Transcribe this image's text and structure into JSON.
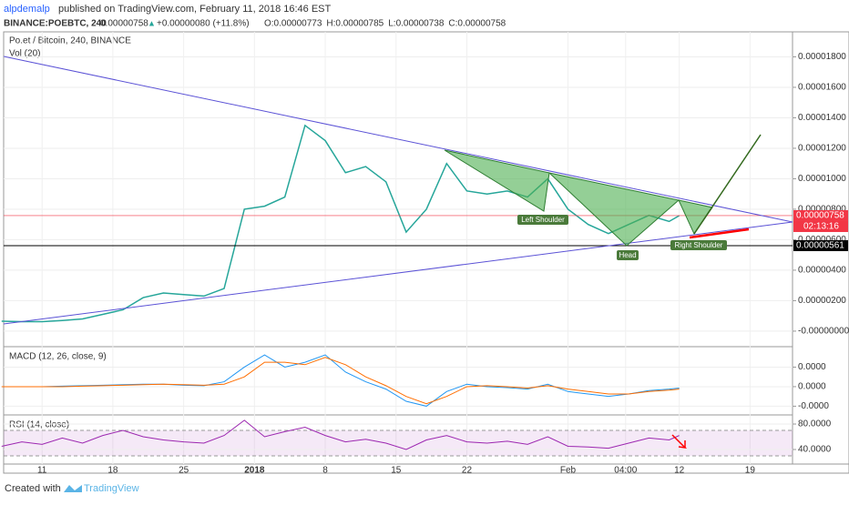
{
  "header": {
    "author": "alpdemalp",
    "published": "published on TradingView.com, February 11, 2018 16:46 EST",
    "symbol": "BINANCE:POEBTC, 240",
    "last": "0.00000758",
    "change": "+0.00000080 (+11.8%)",
    "ohlc": [
      "O:0.00000773",
      "H:0.00000785",
      "L:0.00000738",
      "C:0.00000758"
    ]
  },
  "chart_data": [
    {
      "type": "line",
      "title": "Po.et / Bitcoin, 240, BINANCE",
      "subtitle": "Vol (20)",
      "x": [
        -4,
        -2,
        0,
        2,
        4,
        6,
        8,
        10,
        12,
        14,
        16,
        18,
        20,
        22,
        24,
        26,
        28,
        30,
        32,
        34,
        36,
        38,
        40,
        42,
        44,
        46,
        48,
        50,
        52,
        54,
        56,
        58,
        60,
        62,
        63
      ],
      "series": [
        {
          "color": "#26a69a",
          "values": [
            6.5e-07,
            6.2e-07,
            6.2e-07,
            7e-07,
            8e-07,
            1.1e-06,
            1.4e-06,
            2.2e-06,
            2.5e-06,
            2.4e-06,
            2.3e-06,
            2.8e-06,
            8e-06,
            8.2e-06,
            8.8e-06,
            1.35e-05,
            1.25e-05,
            1.04e-05,
            1.08e-05,
            9.8e-06,
            6.5e-06,
            8e-06,
            1.1e-05,
            9.2e-06,
            9e-06,
            9.2e-06,
            8.8e-06,
            1e-05,
            8e-06,
            7e-06,
            6.4e-06,
            7e-06,
            7.6e-06,
            7.2e-06,
            7.58e-06
          ]
        }
      ],
      "xlim": [
        -3.8,
        74.2
      ],
      "xticks": [
        {
          "value": 0,
          "label": "11"
        },
        {
          "value": 7,
          "label": "18"
        },
        {
          "value": 14,
          "label": "25"
        },
        {
          "value": 21,
          "label": "2018"
        },
        {
          "value": 28,
          "label": "8"
        },
        {
          "value": 35,
          "label": "15"
        },
        {
          "value": 42,
          "label": "22"
        },
        {
          "value": 52,
          "label": "Feb"
        },
        {
          "value": 57.7,
          "label": "04:00"
        },
        {
          "value": 63,
          "label": "12"
        },
        {
          "value": 70,
          "label": "19"
        }
      ],
      "ylim": [
        -9.6e-07,
        1.964e-05
      ],
      "yticks": [
        {
          "value": 1.8e-05,
          "label": "0.00001800"
        },
        {
          "value": 1.6e-05,
          "label": "0.00001600"
        },
        {
          "value": 1.4e-05,
          "label": "0.00001400"
        },
        {
          "value": 1.2e-05,
          "label": "0.00001200"
        },
        {
          "value": 1e-05,
          "label": "0.00001000"
        },
        {
          "value": 8e-06,
          "label": "0.00000800"
        },
        {
          "value": 6e-06,
          "label": "0.00000600"
        },
        {
          "value": 4e-06,
          "label": "0.00000400"
        },
        {
          "value": 2e-06,
          "label": "0.00000200"
        },
        {
          "value": 0,
          "label": "-0.00000000"
        }
      ],
      "levels": [
        {
          "value": 7.58e-06,
          "label": "0.00000758",
          "color": "#f23645"
        },
        {
          "value": 5.61e-06,
          "label": "0.00000561",
          "color": "#000000"
        }
      ],
      "countdown": "02:13:16"
    },
    {
      "type": "line",
      "title": "MACD (12, 26, close, 9)",
      "x": [
        -4,
        -2,
        0,
        2,
        4,
        6,
        8,
        10,
        12,
        14,
        16,
        18,
        20,
        22,
        24,
        26,
        28,
        30,
        32,
        34,
        36,
        38,
        40,
        42,
        44,
        46,
        48,
        50,
        52,
        54,
        56,
        58,
        60,
        62,
        63
      ],
      "series": [
        {
          "color": "#2196f3",
          "values": [
            0,
            0,
            0,
            1e-08,
            2e-08,
            3e-08,
            4e-08,
            5e-08,
            5e-08,
            3e-08,
            2e-08,
            1e-07,
            4e-07,
            6.5e-07,
            4e-07,
            5e-07,
            6.5e-07,
            3e-07,
            1e-07,
            -5e-08,
            -3e-07,
            -4e-07,
            -1e-07,
            5e-08,
            0,
            -2e-08,
            -5e-08,
            5e-08,
            -1e-07,
            -1.5e-07,
            -2e-07,
            -1.5e-07,
            -8e-08,
            -5e-08,
            -3e-08
          ]
        },
        {
          "color": "#ff6d00",
          "values": [
            0,
            0,
            0,
            0,
            1e-08,
            2e-08,
            3e-08,
            4e-08,
            5e-08,
            4e-08,
            3e-08,
            5e-08,
            2e-07,
            5e-07,
            5e-07,
            4.5e-07,
            6e-07,
            4.5e-07,
            2e-07,
            2e-08,
            -2e-07,
            -3.5e-07,
            -2e-07,
            0,
            2e-08,
            0,
            -3e-08,
            2e-08,
            -5e-08,
            -1e-07,
            -1.5e-07,
            -1.5e-07,
            -1e-07,
            -7e-08,
            -5e-08
          ]
        }
      ],
      "xlim": [
        -3.8,
        74.2
      ],
      "ylim": [
        -5.6e-07,
        8e-07
      ],
      "yticks": [
        {
          "value": 4e-07,
          "label": "0.0000"
        },
        {
          "value": 0,
          "label": "0.0000"
        },
        {
          "value": -4e-07,
          "label": "-0.0000"
        }
      ]
    },
    {
      "type": "line",
      "title": "RSI (14, close)",
      "x": [
        -4,
        -2,
        0,
        2,
        4,
        6,
        8,
        10,
        12,
        14,
        16,
        18,
        20,
        22,
        24,
        26,
        28,
        30,
        32,
        34,
        36,
        38,
        40,
        42,
        44,
        46,
        48,
        50,
        52,
        54,
        56,
        58,
        60,
        62,
        63
      ],
      "series": [
        {
          "color": "#9c27b0",
          "values": [
            45,
            52,
            48,
            58,
            50,
            62,
            70,
            60,
            55,
            52,
            50,
            62,
            86,
            60,
            68,
            75,
            62,
            52,
            56,
            50,
            40,
            55,
            62,
            52,
            50,
            53,
            48,
            60,
            45,
            44,
            42,
            50,
            58,
            55,
            62
          ]
        }
      ],
      "xlim": [
        -3.8,
        74.2
      ],
      "ylim": [
        17.1,
        92.9
      ],
      "band": [
        30,
        70
      ],
      "yticks": [
        {
          "value": 80,
          "label": "80.0000"
        },
        {
          "value": 40,
          "label": "40.0000"
        }
      ]
    }
  ],
  "annotations": [
    "Left Shoulder",
    "Head",
    "Right Shoulder"
  ],
  "footer": {
    "created": "Created with",
    "brand": "TradingView"
  }
}
